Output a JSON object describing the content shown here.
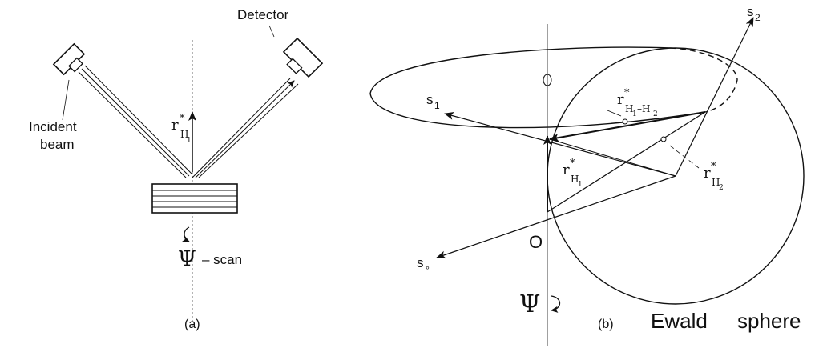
{
  "panel_a": {
    "detector_label": "Detector",
    "incident_label_line1": "Incident",
    "incident_label_line2": "beam",
    "vector_r_base": "r",
    "vector_r_star": "*",
    "vector_r_sub": "H",
    "vector_r_subsub": "1",
    "psi_symbol": "Ψ",
    "scan_label": "– scan",
    "caption": "(a)"
  },
  "panel_b": {
    "s2_base": "s",
    "s2_sub": "2",
    "s1_base": "s",
    "s1_sub": "1",
    "s0_base": "s",
    "s0_sub": "∘",
    "origin_label": "O",
    "r_h1h2_base": "r",
    "r_h1h2_star": "*",
    "r_h1h2_sub_a": "H",
    "r_h1h2_sub_a1": "1",
    "r_h1h2_sub_mid": "–H",
    "r_h1h2_sub_a2": "2",
    "r_h1_base": "r",
    "r_h1_star": "*",
    "r_h1_sub": "H",
    "r_h1_subsub": "1",
    "r_h2_base": "r",
    "r_h2_star": "*",
    "r_h2_sub": "H",
    "r_h2_subsub": "2",
    "psi_symbol": "Ψ",
    "caption": "(b)",
    "ewald_word1": "Ewald",
    "ewald_word2": "sphere"
  }
}
